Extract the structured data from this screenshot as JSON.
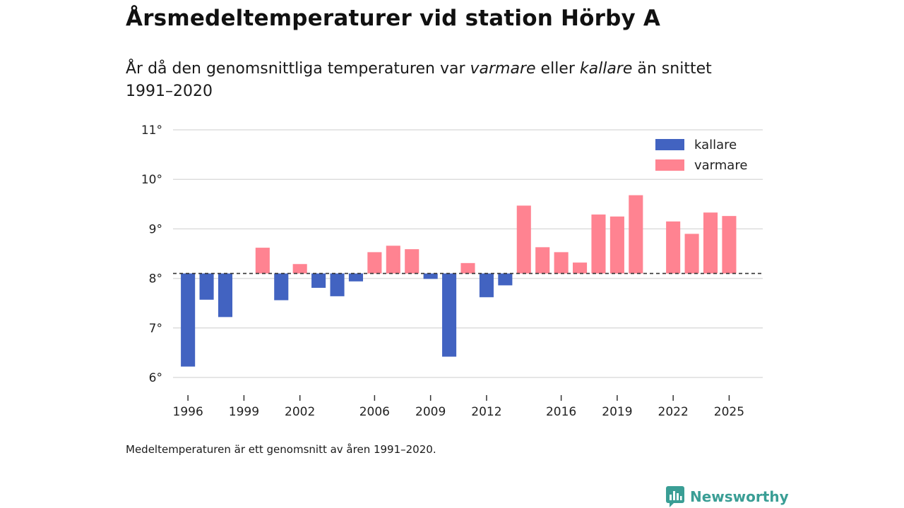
{
  "header": {
    "title": "Årsmedeltemperaturer vid station Hörby A",
    "subtitle_part1": "År då den genomsnittliga temperaturen var ",
    "subtitle_warm": "varmare",
    "subtitle_part2": " eller ",
    "subtitle_cold": "kallare",
    "subtitle_part3": " än snittet 1991–2020"
  },
  "footnote": "Medeltemperaturen är ett genomsnitt av åren 1991–2020.",
  "brand": {
    "name": "Newsworthy",
    "color": "#3a9e95"
  },
  "colors": {
    "cold": "#4263c1",
    "warm": "#ff8391",
    "grid": "#dddddd",
    "baseline": "#333333"
  },
  "chart_data": {
    "type": "bar",
    "baseline": 8.1,
    "ylim": [
      6,
      11
    ],
    "y_ticks": [
      6,
      7,
      8,
      9,
      10,
      11
    ],
    "y_tick_suffix": "°",
    "x_ticks": [
      1996,
      1999,
      2002,
      2006,
      2009,
      2012,
      2016,
      2019,
      2022,
      2025
    ],
    "xlim": [
      1995.2,
      2026.8
    ],
    "legend": {
      "position": "top-right",
      "items": [
        {
          "label": "kallare",
          "key": "cold"
        },
        {
          "label": "varmare",
          "key": "warm"
        }
      ]
    },
    "years": [
      1996,
      1997,
      1998,
      1999,
      2000,
      2001,
      2002,
      2003,
      2004,
      2005,
      2006,
      2007,
      2008,
      2009,
      2010,
      2011,
      2012,
      2013,
      2014,
      2015,
      2016,
      2017,
      2018,
      2019,
      2020,
      2021,
      2022,
      2023,
      2024,
      2025
    ],
    "values": [
      6.22,
      7.57,
      7.22,
      8.1,
      8.62,
      7.56,
      8.29,
      7.81,
      7.64,
      7.94,
      8.53,
      8.66,
      8.59,
      7.99,
      6.42,
      8.31,
      7.62,
      7.86,
      9.47,
      8.63,
      8.53,
      8.32,
      9.29,
      9.25,
      9.68,
      8.1,
      9.15,
      8.9,
      9.33,
      9.26
    ]
  }
}
